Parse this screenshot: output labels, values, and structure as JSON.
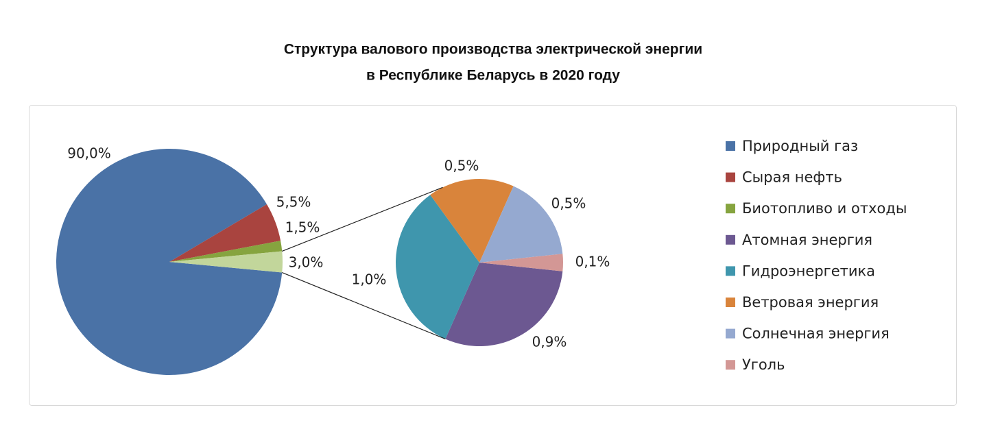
{
  "chart_data": {
    "type": "pie-of-pie",
    "title": [
      "Структура валового производства электрической энергии",
      "в Республике Беларусь в 2020 году"
    ],
    "pies": [
      {
        "categories": [
          "Природный газ",
          "Сырая нефть",
          "Биотопливо и отходы"
        ],
        "values": [
          90.0,
          5.5,
          1.5
        ],
        "value_labels": [
          "90,0%",
          "5,5%",
          "1,5%"
        ],
        "colors": [
          "#4a72a6",
          "#a9443f",
          "#86a43f"
        ]
      },
      {
        "categories": [
          "Атомная энергия",
          "Гидроэнергетика",
          "Ветровая энергия",
          "Солнечная энергия",
          "Уголь"
        ],
        "values": [
          0.9,
          1.0,
          0.5,
          0.5,
          0.1
        ],
        "value_labels": [
          "0,9%",
          "1,0%",
          "0,5%",
          "0,5%",
          "0,1%"
        ],
        "colors": [
          "#6c5891",
          "#3f96ad",
          "#d9843b",
          "#95a9d0",
          "#d39795"
        ]
      }
    ],
    "other": {
      "value": 3.0,
      "value_label": "3,0%",
      "color": "#c2d69b"
    },
    "legend": "right"
  }
}
